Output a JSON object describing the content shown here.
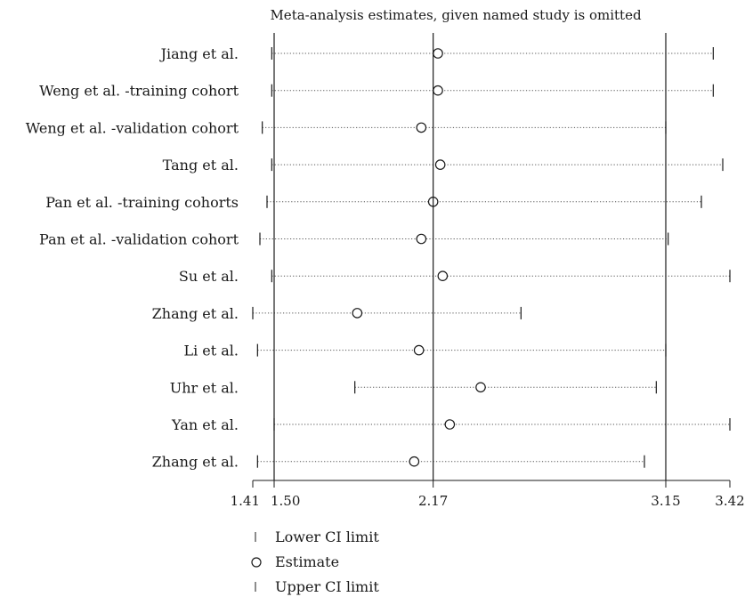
{
  "chart_data": {
    "type": "forest",
    "title": "Meta-analysis estimates, given named study is omitted",
    "studies": [
      {
        "label": "Jiang et al.",
        "lower": 1.49,
        "estimate": 2.19,
        "upper": 3.35
      },
      {
        "label": "Weng et al. -training cohort",
        "lower": 1.49,
        "estimate": 2.19,
        "upper": 3.35
      },
      {
        "label": "Weng et al. -validation cohort",
        "lower": 1.45,
        "estimate": 2.12,
        "upper": 3.15
      },
      {
        "label": "Tang et al.",
        "lower": 1.49,
        "estimate": 2.2,
        "upper": 3.39
      },
      {
        "label": "Pan et al. -training cohorts",
        "lower": 1.47,
        "estimate": 2.17,
        "upper": 3.3
      },
      {
        "label": "Pan et al. -validation cohort",
        "lower": 1.44,
        "estimate": 2.12,
        "upper": 3.16
      },
      {
        "label": "Su et al.",
        "lower": 1.49,
        "estimate": 2.21,
        "upper": 3.42
      },
      {
        "label": "Zhang et al.",
        "lower": 1.41,
        "estimate": 1.85,
        "upper": 2.54
      },
      {
        "label": "Li et al.",
        "lower": 1.43,
        "estimate": 2.11,
        "upper": 3.15
      },
      {
        "label": "Uhr et al.",
        "lower": 1.84,
        "estimate": 2.37,
        "upper": 3.11
      },
      {
        "label": "Yan et al.",
        "lower": 1.5,
        "estimate": 2.24,
        "upper": 3.42
      },
      {
        "label": "Zhang et al.",
        "lower": 1.43,
        "estimate": 2.09,
        "upper": 3.06
      }
    ],
    "x_ticks": [
      "1.41",
      "1.50",
      "2.17",
      "3.15",
      "3.42"
    ],
    "x_range": [
      1.41,
      3.42
    ],
    "reference_lines": [
      1.5,
      2.17,
      3.15
    ],
    "legend": {
      "lower": "Lower CI limit",
      "estimate": "Estimate",
      "upper": "Upper CI limit"
    }
  }
}
